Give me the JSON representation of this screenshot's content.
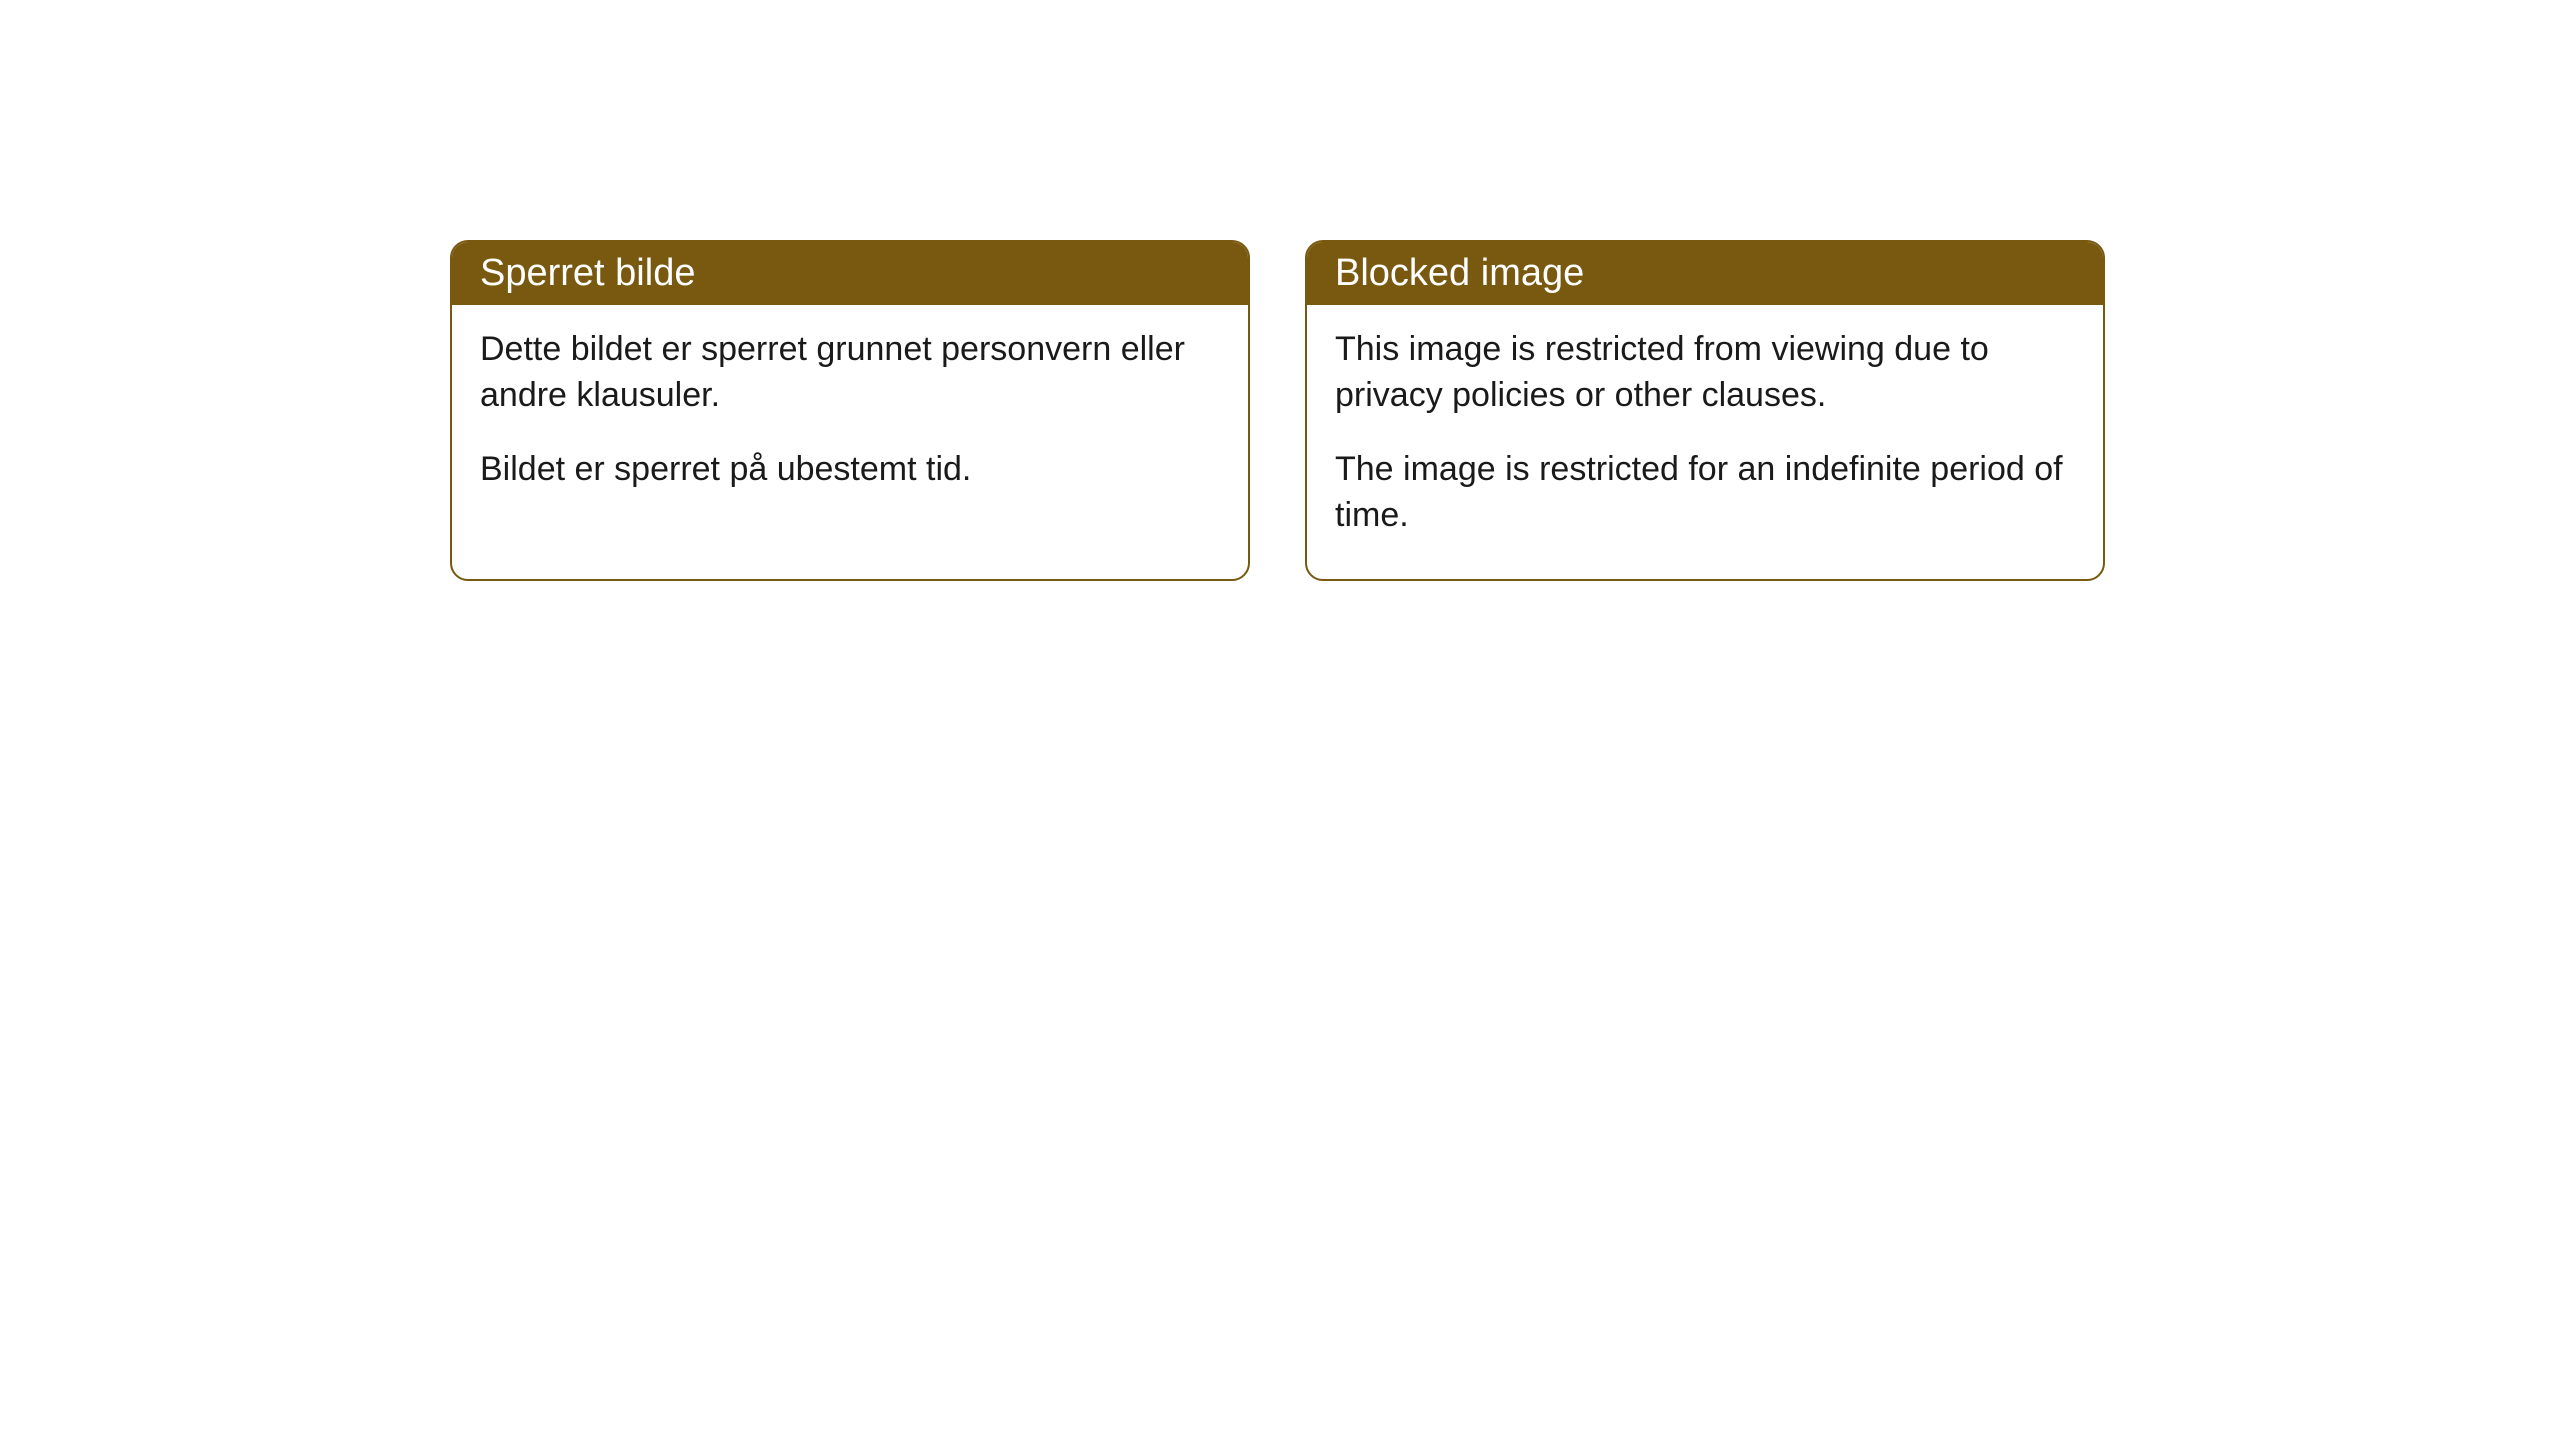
{
  "cards": [
    {
      "title": "Sperret bilde",
      "paragraph1": "Dette bildet er sperret grunnet personvern eller andre klausuler.",
      "paragraph2": "Bildet er sperret på ubestemt tid."
    },
    {
      "title": "Blocked image",
      "paragraph1": "This image is restricted from viewing due to privacy policies or other clauses.",
      "paragraph2": "The image is restricted for an indefinite period of time."
    }
  ],
  "colors": {
    "header_background": "#78590f",
    "header_text": "#ffffff",
    "body_text": "#1a1a1a",
    "card_background": "#ffffff",
    "border": "#78590f"
  },
  "typography": {
    "header_fontsize": 38,
    "body_fontsize": 34
  }
}
